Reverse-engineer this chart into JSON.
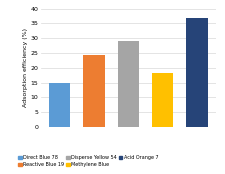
{
  "categories": [
    "Direct Blue 78",
    "Reactive Blue 19",
    "Disperse Yellow 54",
    "Methylene Blue",
    "Acid Orange 7"
  ],
  "values": [
    14.8,
    24.2,
    29.2,
    18.3,
    37.0
  ],
  "bar_colors": [
    "#5b9bd5",
    "#ed7d31",
    "#a5a5a5",
    "#ffc000",
    "#264478"
  ],
  "ylabel": "Adsorption efficiency (%)",
  "ylim": [
    0,
    40
  ],
  "yticks": [
    0,
    5,
    10,
    15,
    20,
    25,
    30,
    35,
    40
  ],
  "legend_labels": [
    "Direct Blue 78",
    "Reactive Blue 19",
    "Disperse Yellow 54",
    "Methylene Blue",
    "Acid Orange 7"
  ],
  "legend_colors": [
    "#5b9bd5",
    "#ed7d31",
    "#a5a5a5",
    "#ffc000",
    "#264478"
  ],
  "background_color": "#ffffff",
  "grid_color": "#d9d9d9"
}
